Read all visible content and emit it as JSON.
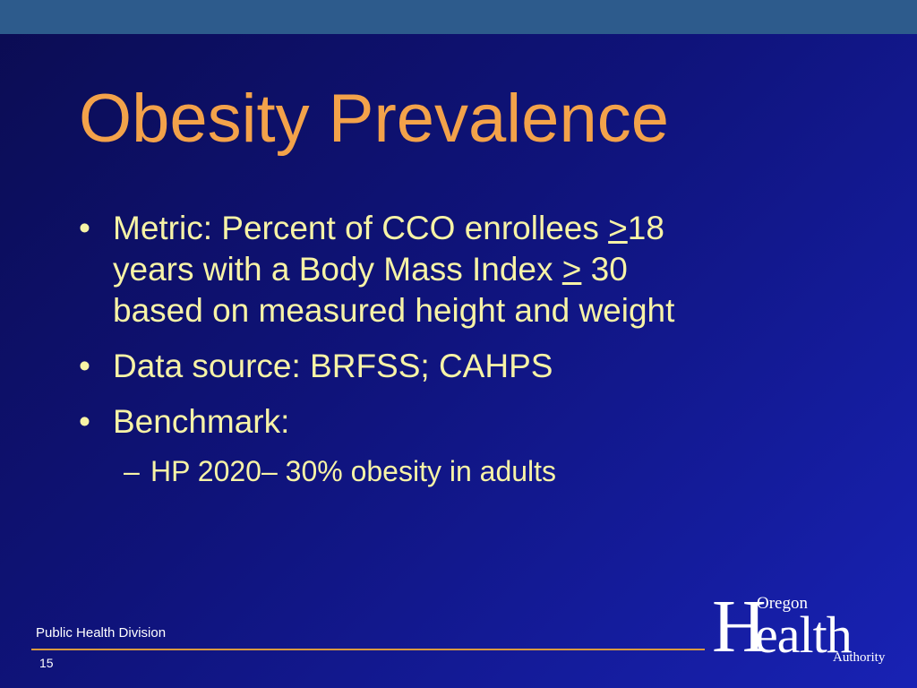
{
  "slide": {
    "title": "Obesity Prevalence",
    "bullets": {
      "b1": {
        "line1_pre": "Metric: Percent of CCO enrollees ",
        "line1_sym": ">",
        "line1_post": "18",
        "line2_pre": "years with a Body Mass Index ",
        "line2_sym": ">",
        "line2_post": " 30",
        "line3": "based on measured height and weight"
      },
      "b2": "Data source: BRFSS; CAHPS",
      "b3": "Benchmark:",
      "sub1": "HP 2020– 30% obesity in adults"
    },
    "bullet_glyph": "•",
    "dash_glyph": "–"
  },
  "footer": {
    "division": "Public Health Division",
    "page_number": "15"
  },
  "logo": {
    "h": "H",
    "ealth": "ealth",
    "oregon": "Oregon",
    "authority": "Authority"
  },
  "colors": {
    "title": "#f3a24a",
    "body_text": "#f7f3a6",
    "background": "#0f137a",
    "top_bar": "#2d5b8c",
    "footer_rule": "#d99a3f"
  }
}
